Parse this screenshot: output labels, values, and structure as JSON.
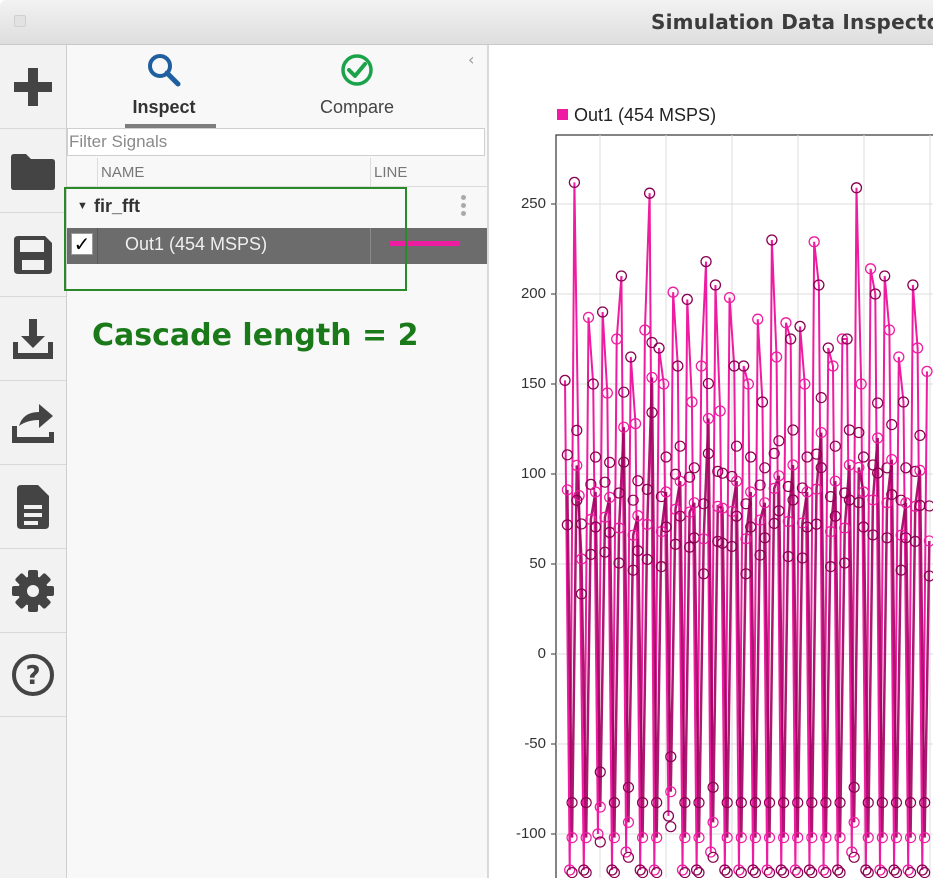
{
  "window": {
    "title": "Simulation Data Inspector"
  },
  "toolbar": {
    "items": [
      {
        "name": "new-icon"
      },
      {
        "name": "open-folder-icon"
      },
      {
        "name": "save-icon"
      },
      {
        "name": "import-icon"
      },
      {
        "name": "export-icon"
      },
      {
        "name": "report-icon"
      },
      {
        "name": "settings-gear-icon"
      },
      {
        "name": "help-icon"
      }
    ]
  },
  "panel": {
    "tabs": {
      "inspect": "Inspect",
      "compare": "Compare",
      "active": "Inspect"
    },
    "filter_placeholder": "Filter Signals",
    "columns": {
      "name": "NAME",
      "line": "LINE"
    },
    "group": {
      "name": "fir_fft",
      "expanded": true
    },
    "signals": [
      {
        "name": "Out1 (454 MSPS)",
        "checked": true,
        "line_color": "#ee1ca0"
      }
    ]
  },
  "annotation": {
    "text": "Cascade length = 2",
    "color": "#1a7a1a"
  },
  "plot": {
    "legend": "Out1 (454 MSPS)",
    "series_color": "#ee1ca0",
    "yticks": [
      "250",
      "200",
      "150",
      "100",
      "50",
      "0",
      "-50",
      "-100"
    ]
  },
  "chart_data": {
    "type": "line",
    "title": "",
    "legend": [
      "Out1 (454 MSPS)"
    ],
    "ylim": [
      -120,
      270
    ],
    "grid": true,
    "series": [
      {
        "name": "Out1 (454 MSPS)",
        "color": "#ee1ca0",
        "values": [
          152,
          -120,
          262,
          88,
          -120,
          187,
          150,
          -100,
          190,
          145,
          -120,
          175,
          210,
          -110,
          165,
          128,
          -120,
          180,
          256,
          -120,
          170,
          150,
          -90,
          201,
          160,
          -120,
          197,
          140,
          -120,
          160,
          218,
          -110,
          205,
          135,
          -120,
          198,
          160,
          -120,
          160,
          150,
          -120,
          186,
          140,
          -120,
          230,
          165,
          -120,
          184,
          175,
          -120,
          182,
          150,
          -120,
          229,
          205,
          -120,
          170,
          160,
          -120,
          175,
          175,
          -110,
          259,
          150,
          -120,
          214,
          200,
          -120,
          210,
          180,
          -120,
          165,
          140,
          -120,
          205,
          170,
          -120,
          157
        ]
      }
    ]
  }
}
